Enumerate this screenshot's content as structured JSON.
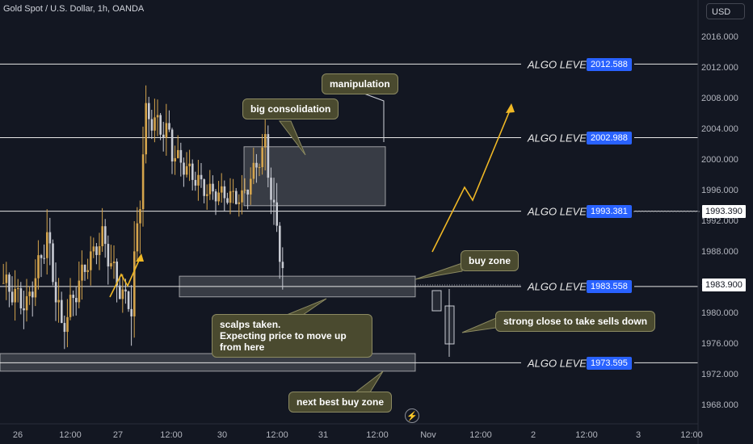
{
  "header": {
    "title": "Gold Spot / U.S. Dollar, 1h, OANDA",
    "currency": "USD"
  },
  "colors": {
    "background": "#131722",
    "bull_candle": "#d4a44c",
    "bear_candle": "#c8cbd3",
    "algo_label_bg": "#2962ff",
    "arrow": "#f0b825",
    "zone": "#ffffff"
  },
  "chart_data": {
    "type": "candlestick",
    "symbol": "Gold Spot / U.S. Dollar",
    "interval": "1h",
    "ylim": [
      1966,
      2018
    ],
    "y_ticks": [
      "2016.000",
      "2012.000",
      "2008.000",
      "2004.000",
      "2000.000",
      "1996.000",
      "1992.000",
      "1988.000",
      "1984.000",
      "1980.000",
      "1976.000",
      "1972.000",
      "1968.000"
    ],
    "x_ticks": [
      "26",
      "12:00",
      "27",
      "12:00",
      "30",
      "12:00",
      "31",
      "12:00",
      "Nov",
      "12:00",
      "2",
      "12:00",
      "3",
      "12:00"
    ],
    "algo_levels": [
      {
        "label": "ALGO LEVEL",
        "value": "2012.588"
      },
      {
        "label": "ALGO LEVEL",
        "value": "2002.988"
      },
      {
        "label": "ALGO LEVEL",
        "value": "1993.381"
      },
      {
        "label": "ALGO LEVEL",
        "value": "1983.558"
      },
      {
        "label": "ALGO LEVEL",
        "value": "1973.595"
      }
    ],
    "price_tags": [
      "1993.390",
      "1983.900"
    ],
    "zones": [
      {
        "name": "big consolidation",
        "top": 2001.8,
        "bottom": 1994.1
      },
      {
        "name": "buy zone",
        "top": 1984.9,
        "bottom": 1982.2
      },
      {
        "name": "next best buy zone",
        "top": 1974.8,
        "bottom": 1972.5
      }
    ],
    "annotations": {
      "manipulation": "manipulation",
      "big_consolidation": "big consolidation",
      "buy_zone": "buy zone",
      "scalps_line1": "scalps taken.",
      "scalps_line2": "Expecting price to move up from here",
      "strong_close": "strong close to take sells down",
      "next_buy_zone": "next best buy zone"
    }
  }
}
